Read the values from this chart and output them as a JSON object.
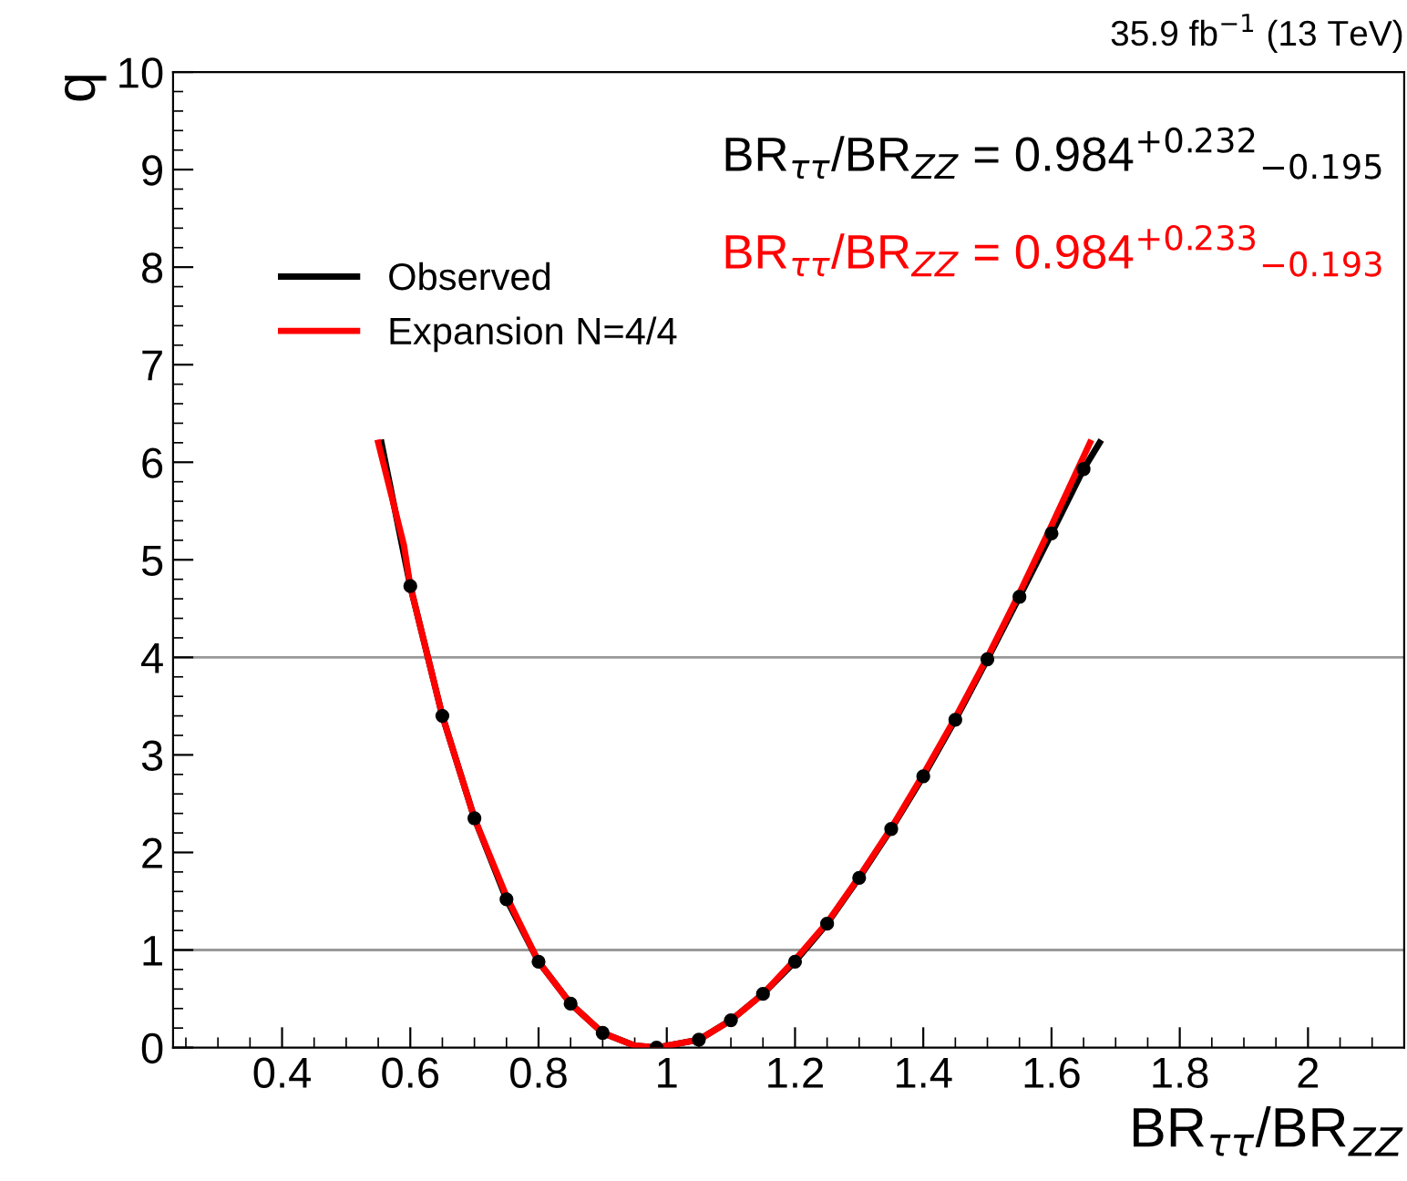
{
  "chart_data": {
    "type": "line",
    "xlabel": "BR$_{ττ}$/BR$_{ZZ}$",
    "ylabel": "q",
    "xlim": [
      0.23,
      2.15
    ],
    "ylim": [
      0,
      10
    ],
    "xticks": [
      0.4,
      0.6,
      0.8,
      1,
      1.2,
      1.4,
      1.6,
      1.8,
      2
    ],
    "yticks": [
      0,
      1,
      2,
      3,
      4,
      5,
      6,
      7,
      8,
      9,
      10
    ],
    "grid": false,
    "legend": "left",
    "ref_lines": [
      {
        "axis": "y",
        "value": 1,
        "color": "#999999"
      },
      {
        "axis": "y",
        "value": 4,
        "color": "#999999"
      }
    ],
    "annotations": [
      "35.9 fb$^{−1}$ (13 TeV)",
      "BR$_{ττ}$/BR$_{ZZ}$ = 0.984$^{+0.232}$$_{−0.195}$",
      "BR$_{ττ}$/BR$_{ZZ}$ = 0.984$^{+0.233}$$_{−0.193}$"
    ],
    "series": [
      {
        "name": "Observed",
        "color": "#000000",
        "marker": "none",
        "x": [
          0.555,
          0.6,
          0.65,
          0.7,
          0.75,
          0.8,
          0.85,
          0.9,
          0.95,
          0.984,
          1.05,
          1.1,
          1.15,
          1.2,
          1.25,
          1.3,
          1.35,
          1.4,
          1.45,
          1.5,
          1.55,
          1.6,
          1.65,
          1.675
        ],
        "values": [
          6.2,
          4.73,
          3.4,
          2.35,
          1.52,
          0.88,
          0.45,
          0.15,
          0.02,
          0,
          0.08,
          0.28,
          0.55,
          0.88,
          1.27,
          1.74,
          2.24,
          2.78,
          3.36,
          3.98,
          4.62,
          5.27,
          5.93,
          6.2
        ]
      },
      {
        "name": "Expansion N=4/4",
        "color": "#ff0000",
        "marker": "none",
        "x": [
          0.55,
          0.59,
          0.6,
          0.65,
          0.7,
          0.75,
          0.8,
          0.85,
          0.9,
          0.95,
          0.984,
          1.05,
          1.1,
          1.15,
          1.2,
          1.25,
          1.3,
          1.35,
          1.4,
          1.45,
          1.5,
          1.55,
          1.6,
          1.66
        ],
        "values": [
          6.2,
          5.15,
          4.73,
          3.4,
          2.35,
          1.55,
          0.88,
          0.45,
          0.15,
          0.02,
          0,
          0.08,
          0.28,
          0.55,
          0.9,
          1.28,
          1.75,
          2.25,
          2.8,
          3.38,
          4.0,
          4.66,
          5.35,
          6.2
        ]
      },
      {
        "color": "#000000",
        "type": "scatter",
        "marker": "circle",
        "x": [
          0.6,
          0.65,
          0.7,
          0.75,
          0.8,
          0.85,
          0.9,
          0.984,
          1.05,
          1.1,
          1.15,
          1.2,
          1.25,
          1.3,
          1.35,
          1.4,
          1.45,
          1.5,
          1.55,
          1.6,
          1.65
        ],
        "values": [
          4.73,
          3.4,
          2.35,
          1.52,
          0.88,
          0.45,
          0.15,
          0,
          0.08,
          0.28,
          0.55,
          0.88,
          1.27,
          1.74,
          2.24,
          2.78,
          3.36,
          3.98,
          4.62,
          5.27,
          5.93
        ]
      }
    ]
  }
}
